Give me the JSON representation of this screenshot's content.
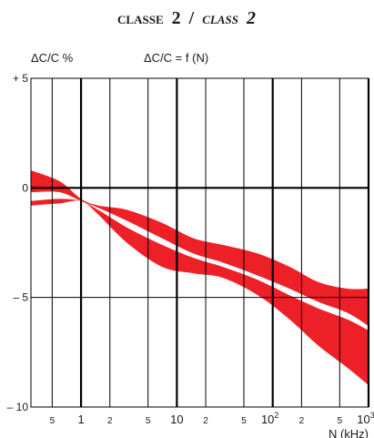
{
  "chart_data": {
    "type": "area",
    "title": {
      "prefix": "CLASSE",
      "num": "2",
      "sep": "/",
      "prefix_it": "CLASS",
      "num_it": "2"
    },
    "ylabel": "ΔC/C %",
    "formula": "ΔC/C = f (N)",
    "xlabel": "N (kHz)",
    "x_scale": "log",
    "xlim": [
      0.3,
      1000
    ],
    "ylim": [
      -10,
      5
    ],
    "grid": true,
    "y_ticks": [
      {
        "value": 5,
        "label": "+ 5"
      },
      {
        "value": 0,
        "label": "0"
      },
      {
        "value": -5,
        "label": "– 5"
      },
      {
        "value": -10,
        "label": "– 10"
      }
    ],
    "x_ticks": [
      {
        "value": 0.5,
        "label": "5",
        "small": true
      },
      {
        "value": 1,
        "label": "1",
        "small": false
      },
      {
        "value": 2,
        "label": "2",
        "small": true
      },
      {
        "value": 5,
        "label": "5",
        "small": true
      },
      {
        "value": 10,
        "label": "10",
        "small": false
      },
      {
        "value": 20,
        "label": "2",
        "small": true
      },
      {
        "value": 50,
        "label": "5",
        "small": true
      },
      {
        "value": 100,
        "label": "10",
        "sup": "2",
        "small": false
      },
      {
        "value": 200,
        "label": "2",
        "small": true
      },
      {
        "value": 500,
        "label": "5",
        "small": true
      },
      {
        "value": 1000,
        "label": "10",
        "sup": "3",
        "small": false
      }
    ],
    "upper_band": {
      "x": [
        0.3,
        0.6,
        1,
        1.5,
        3,
        7,
        15,
        30,
        70,
        150,
        300,
        600,
        1000
      ],
      "top": [
        0.8,
        0.3,
        -0.5,
        -0.8,
        -1.0,
        -1.6,
        -2.3,
        -2.6,
        -3.0,
        -3.6,
        -4.3,
        -4.6,
        -4.6
      ],
      "bottom": [
        -0.2,
        -0.2,
        -0.6,
        -0.9,
        -1.5,
        -2.3,
        -3.0,
        -3.4,
        -4.0,
        -4.6,
        -5.2,
        -5.7,
        -6.3
      ]
    },
    "lower_band": {
      "x": [
        0.3,
        0.6,
        1,
        1.5,
        3,
        7,
        15,
        30,
        70,
        150,
        300,
        600,
        1000
      ],
      "top": [
        -0.6,
        -0.5,
        -0.6,
        -1.0,
        -1.8,
        -2.6,
        -3.2,
        -3.6,
        -4.2,
        -4.9,
        -5.5,
        -6.0,
        -6.5
      ],
      "bottom": [
        -0.8,
        -0.7,
        -0.6,
        -1.2,
        -2.5,
        -3.6,
        -3.9,
        -4.1,
        -4.9,
        -6.0,
        -7.2,
        -8.2,
        -9.0
      ]
    },
    "colors": {
      "band": "#ee2027",
      "grid": "#000000"
    }
  }
}
